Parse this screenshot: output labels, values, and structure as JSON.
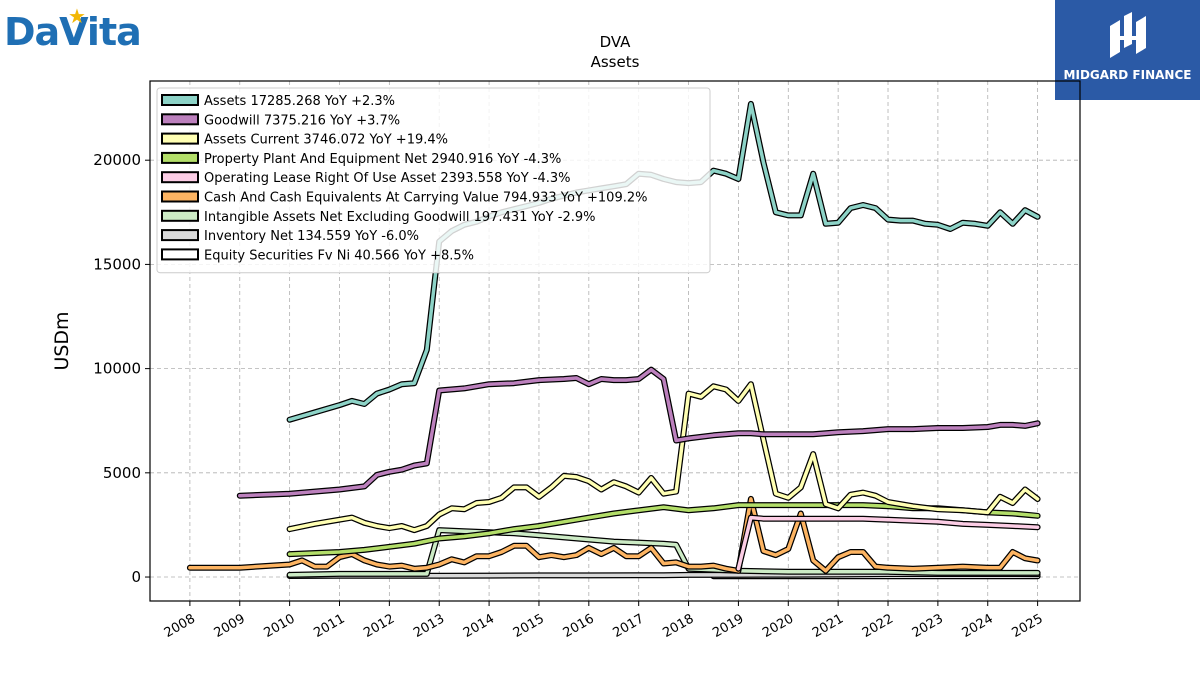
{
  "brand": {
    "left_logo": "DaVita",
    "right_logo": "MIDGARD FINANCE"
  },
  "chart_data": {
    "type": "line",
    "title": "DVA",
    "subtitle": "Assets",
    "xlabel": "",
    "ylabel": "USDm",
    "xlim": [
      2007.2,
      2025.85
    ],
    "ylim": [
      -1150,
      23800
    ],
    "xticks": [
      "2008",
      "2009",
      "2010",
      "2011",
      "2012",
      "2013",
      "2014",
      "2015",
      "2016",
      "2017",
      "2018",
      "2019",
      "2020",
      "2021",
      "2022",
      "2023",
      "2024",
      "2025"
    ],
    "yticks": [
      0,
      5000,
      10000,
      15000,
      20000
    ],
    "grid": true,
    "legend_position": "top-left",
    "series": [
      {
        "name": "Assets  17285.268 YoY +2.3%",
        "color": "#8dd3c7",
        "x": [
          2010.0,
          2010.5,
          2011.0,
          2011.25,
          2011.5,
          2011.75,
          2012.0,
          2012.25,
          2012.5,
          2012.75,
          2013.0,
          2013.25,
          2013.5,
          2013.75,
          2014.0,
          2014.25,
          2014.5,
          2014.75,
          2015.0,
          2015.25,
          2015.5,
          2015.75,
          2016.0,
          2016.25,
          2016.5,
          2016.75,
          2017.0,
          2017.25,
          2017.5,
          2017.75,
          2018.0,
          2018.25,
          2018.5,
          2018.75,
          2019.0,
          2019.25,
          2019.5,
          2019.75,
          2020.0,
          2020.25,
          2020.5,
          2020.75,
          2021.0,
          2021.25,
          2021.5,
          2021.75,
          2022.0,
          2022.25,
          2022.5,
          2022.75,
          2023.0,
          2023.25,
          2023.5,
          2023.75,
          2024.0,
          2024.25,
          2024.5,
          2024.75,
          2025.0
        ],
        "values": [
          7550,
          7900,
          8250,
          8450,
          8300,
          8800,
          9000,
          9250,
          9300,
          10900,
          16100,
          16600,
          16900,
          17050,
          17300,
          17500,
          17650,
          17800,
          17950,
          18150,
          18300,
          18450,
          18550,
          18650,
          18750,
          18850,
          19350,
          19300,
          19100,
          18950,
          18900,
          18950,
          19500,
          19350,
          19100,
          22700,
          19900,
          17500,
          17350,
          17350,
          19350,
          16950,
          17000,
          17700,
          17850,
          17700,
          17150,
          17100,
          17100,
          16950,
          16900,
          16700,
          17000,
          16950,
          16850,
          17500,
          16950,
          17600,
          17285
        ]
      },
      {
        "name": "Goodwill  7375.216 YoY +3.7%",
        "color": "#bc80bd",
        "x": [
          2009.0,
          2010.0,
          2011.0,
          2011.5,
          2011.75,
          2012.0,
          2012.25,
          2012.5,
          2012.75,
          2013.0,
          2013.5,
          2014.0,
          2014.5,
          2015.0,
          2015.5,
          2015.75,
          2016.0,
          2016.25,
          2016.5,
          2016.75,
          2017.0,
          2017.25,
          2017.5,
          2017.75,
          2018.0,
          2018.5,
          2019.0,
          2019.25,
          2019.5,
          2020.0,
          2020.5,
          2021.0,
          2021.5,
          2022.0,
          2022.5,
          2023.0,
          2023.5,
          2024.0,
          2024.25,
          2024.5,
          2024.75,
          2025.0
        ],
        "values": [
          3900,
          4000,
          4200,
          4350,
          4900,
          5050,
          5150,
          5350,
          5450,
          8950,
          9050,
          9250,
          9300,
          9450,
          9500,
          9550,
          9250,
          9500,
          9450,
          9450,
          9500,
          9950,
          9500,
          6550,
          6650,
          6800,
          6900,
          6900,
          6850,
          6850,
          6850,
          6950,
          7000,
          7100,
          7100,
          7150,
          7150,
          7200,
          7300,
          7300,
          7250,
          7375
        ]
      },
      {
        "name": "Assets Current  3746.072 YoY +19.4%",
        "color": "#ffffb3",
        "x": [
          2010.0,
          2010.5,
          2011.0,
          2011.25,
          2011.5,
          2011.75,
          2012.0,
          2012.25,
          2012.5,
          2012.75,
          2013.0,
          2013.25,
          2013.5,
          2013.75,
          2014.0,
          2014.25,
          2014.5,
          2014.75,
          2015.0,
          2015.25,
          2015.5,
          2015.75,
          2016.0,
          2016.25,
          2016.5,
          2016.75,
          2017.0,
          2017.25,
          2017.5,
          2017.75,
          2018.0,
          2018.25,
          2018.5,
          2018.75,
          2019.0,
          2019.25,
          2019.5,
          2019.75,
          2020.0,
          2020.25,
          2020.5,
          2020.75,
          2021.0,
          2021.25,
          2021.5,
          2021.75,
          2022.0,
          2022.5,
          2023.0,
          2023.5,
          2024.0,
          2024.25,
          2024.5,
          2024.75,
          2025.0
        ],
        "values": [
          2300,
          2550,
          2750,
          2850,
          2600,
          2450,
          2350,
          2450,
          2250,
          2450,
          3000,
          3300,
          3250,
          3550,
          3600,
          3800,
          4300,
          4300,
          3850,
          4300,
          4850,
          4800,
          4600,
          4200,
          4550,
          4350,
          4050,
          4750,
          4000,
          4100,
          8800,
          8650,
          9150,
          9000,
          8450,
          9250,
          6600,
          4000,
          3800,
          4300,
          5900,
          3500,
          3300,
          3950,
          4050,
          3900,
          3600,
          3400,
          3250,
          3200,
          3100,
          3850,
          3550,
          4200,
          3746
        ]
      },
      {
        "name": "Property Plant And Equipment Net  2940.916 YoY -4.3%",
        "color": "#b3de69",
        "x": [
          2010.0,
          2011.0,
          2011.5,
          2012.0,
          2012.5,
          2013.0,
          2013.5,
          2014.0,
          2014.5,
          2015.0,
          2015.5,
          2016.0,
          2016.5,
          2017.0,
          2017.5,
          2018.0,
          2018.5,
          2019.0,
          2019.5,
          2020.0,
          2020.5,
          2021.0,
          2021.5,
          2022.0,
          2022.5,
          2023.0,
          2023.5,
          2024.0,
          2024.5,
          2025.0
        ],
        "values": [
          1100,
          1200,
          1300,
          1450,
          1600,
          1850,
          1950,
          2100,
          2300,
          2450,
          2650,
          2850,
          3050,
          3200,
          3350,
          3200,
          3300,
          3450,
          3450,
          3450,
          3450,
          3450,
          3450,
          3400,
          3300,
          3300,
          3200,
          3100,
          3050,
          2940
        ]
      },
      {
        "name": "Operating Lease Right Of Use Asset  2393.558 YoY -4.3%",
        "color": "#fccde5",
        "x": [
          2019.0,
          2019.25,
          2019.5,
          2020.0,
          2020.5,
          2021.0,
          2021.5,
          2022.0,
          2022.5,
          2023.0,
          2023.5,
          2024.0,
          2024.5,
          2025.0
        ],
        "values": [
          400,
          2850,
          2800,
          2800,
          2800,
          2800,
          2800,
          2750,
          2700,
          2650,
          2550,
          2500,
          2450,
          2393
        ]
      },
      {
        "name": "Cash And Cash Equivalents At Carrying Value  794.933 YoY +109.2%",
        "color": "#fdb462",
        "x": [
          2008.0,
          2009.0,
          2010.0,
          2010.25,
          2010.5,
          2010.75,
          2011.0,
          2011.25,
          2011.5,
          2011.75,
          2012.0,
          2012.25,
          2012.5,
          2012.75,
          2013.0,
          2013.25,
          2013.5,
          2013.75,
          2014.0,
          2014.25,
          2014.5,
          2014.75,
          2015.0,
          2015.25,
          2015.5,
          2015.75,
          2016.0,
          2016.25,
          2016.5,
          2016.75,
          2017.0,
          2017.25,
          2017.5,
          2017.75,
          2018.0,
          2018.25,
          2018.5,
          2018.75,
          2019.0,
          2019.25,
          2019.5,
          2019.75,
          2020.0,
          2020.25,
          2020.5,
          2020.75,
          2021.0,
          2021.25,
          2021.5,
          2021.75,
          2022.0,
          2022.5,
          2023.0,
          2023.5,
          2024.0,
          2024.25,
          2024.5,
          2024.75,
          2025.0
        ],
        "values": [
          450,
          450,
          600,
          800,
          500,
          500,
          950,
          1100,
          800,
          600,
          500,
          550,
          400,
          450,
          600,
          850,
          700,
          1000,
          1000,
          1200,
          1500,
          1500,
          950,
          1050,
          950,
          1050,
          1400,
          1100,
          1400,
          1000,
          1000,
          1400,
          650,
          700,
          500,
          500,
          550,
          400,
          300,
          3750,
          1250,
          1050,
          1350,
          3050,
          800,
          300,
          950,
          1200,
          1200,
          500,
          450,
          400,
          450,
          500,
          450,
          450,
          1200,
          900,
          795
        ]
      },
      {
        "name": "Intangible Assets Net Excluding Goodwill  197.431 YoY -2.9%",
        "color": "#ccebc5",
        "x": [
          2010.0,
          2011.0,
          2012.0,
          2012.75,
          2013.0,
          2013.5,
          2014.0,
          2014.5,
          2015.0,
          2015.5,
          2016.0,
          2016.5,
          2017.0,
          2017.5,
          2017.75,
          2018.0,
          2019.0,
          2020.0,
          2021.0,
          2022.0,
          2023.0,
          2024.0,
          2025.0
        ],
        "values": [
          100,
          150,
          150,
          150,
          2250,
          2200,
          2150,
          2100,
          2000,
          1900,
          1800,
          1700,
          1650,
          1600,
          1550,
          400,
          300,
          250,
          250,
          250,
          200,
          200,
          197
        ]
      },
      {
        "name": "Inventory Net  134.559 YoY -6.0%",
        "color": "#d9d9d9",
        "x": [
          2010.0,
          2011.0,
          2012.0,
          2013.0,
          2014.0,
          2015.0,
          2016.0,
          2017.0,
          2017.5,
          2018.0,
          2019.0,
          2020.0,
          2021.0,
          2022.0,
          2023.0,
          2024.0,
          2025.0
        ],
        "values": [
          50,
          60,
          60,
          60,
          70,
          80,
          80,
          90,
          90,
          100,
          100,
          110,
          120,
          140,
          140,
          140,
          135
        ]
      },
      {
        "name": "Equity Securities Fv Ni  40.566 YoY +8.5%",
        "color": "#ffffff",
        "x": [
          2018.5,
          2019.0,
          2020.0,
          2021.0,
          2022.0,
          2023.0,
          2024.0,
          2025.0
        ],
        "values": [
          40,
          40,
          40,
          40,
          40,
          40,
          40,
          40
        ]
      }
    ]
  }
}
